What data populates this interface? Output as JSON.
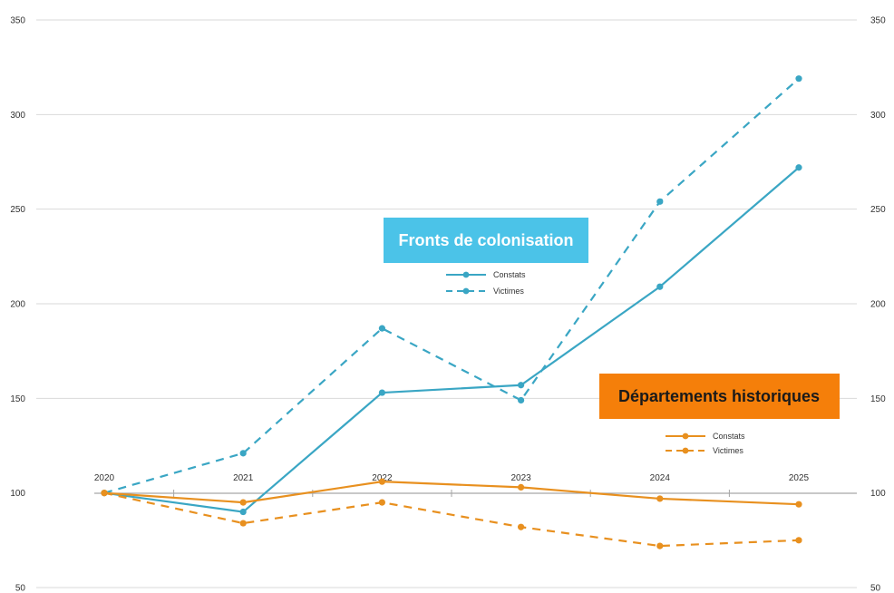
{
  "chart_data": {
    "type": "line",
    "x": [
      "2020",
      "2021",
      "2022",
      "2023",
      "2024",
      "2025"
    ],
    "ylim": [
      50,
      350
    ],
    "yticks": [
      50,
      100,
      150,
      200,
      250,
      300,
      350
    ],
    "grid": true,
    "groups": [
      {
        "title": "Fronts de colonisation",
        "color": "#3AA6C4",
        "badge_color": "#4BC3E8",
        "series": [
          {
            "name": "Constats",
            "style": "solid",
            "values": [
              100,
              90,
              153,
              157,
              209,
              272
            ]
          },
          {
            "name": "Victimes",
            "style": "dashed",
            "values": [
              100,
              121,
              187,
              149,
              254,
              319
            ]
          }
        ]
      },
      {
        "title": "Départements historiques",
        "color": "#E8901F",
        "badge_color": "#F57F0A",
        "series": [
          {
            "name": "Constats",
            "style": "solid",
            "values": [
              100,
              95,
              106,
              103,
              97,
              94
            ]
          },
          {
            "name": "Victimes",
            "style": "dashed",
            "values": [
              100,
              84,
              95,
              82,
              72,
              75
            ]
          }
        ]
      }
    ]
  }
}
